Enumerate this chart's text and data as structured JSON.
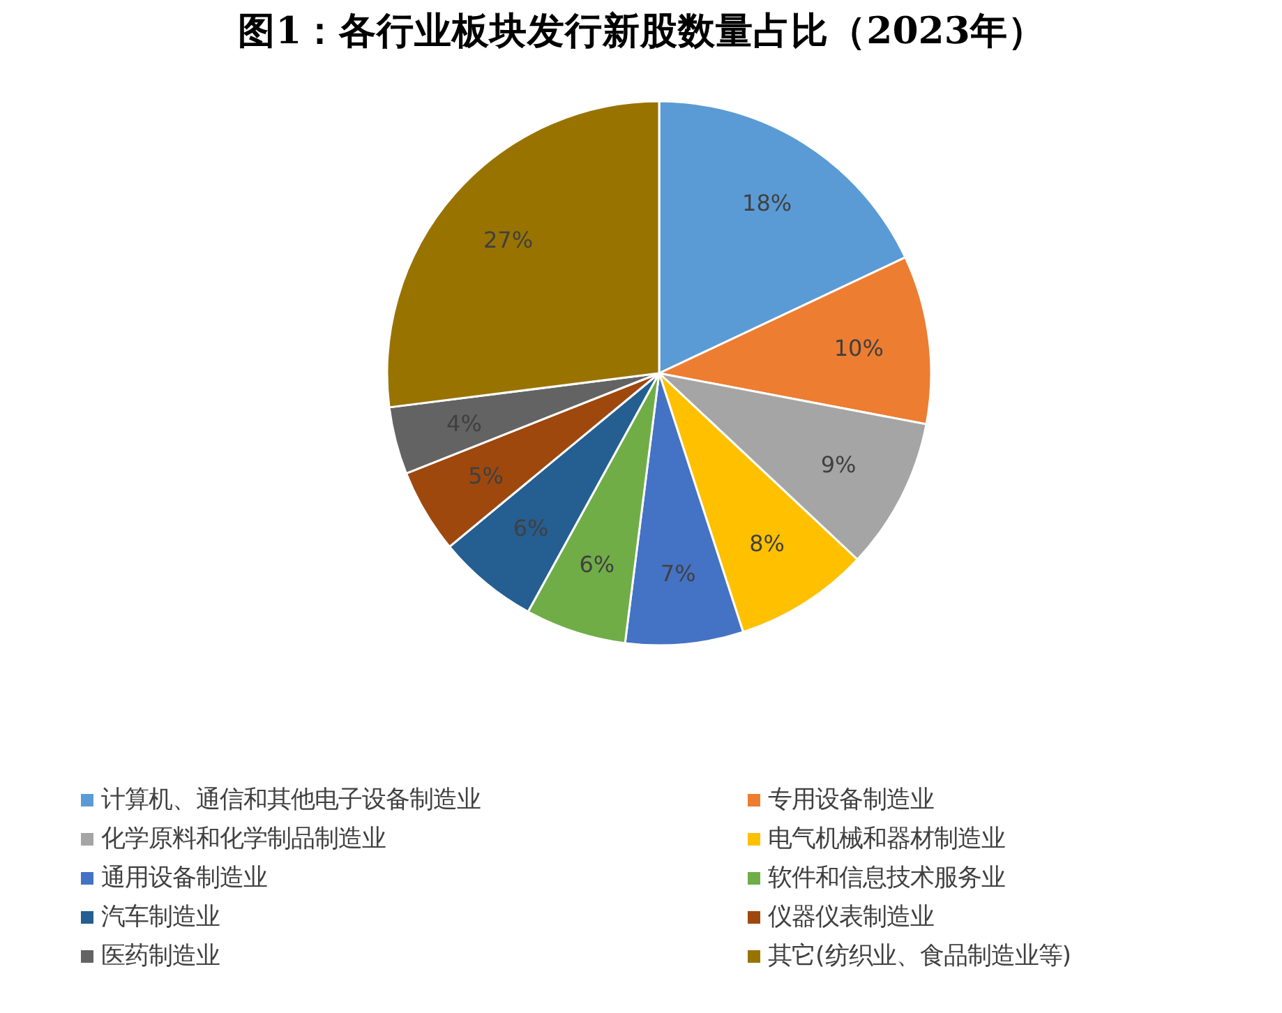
{
  "chart_data": {
    "type": "pie",
    "title": "图1：各行业板块发行新股数量占比（2023年）",
    "categories": [
      "计算机、通信和其他电子设备制造业",
      "专用设备制造业",
      "化学原料和化学制品制造业",
      "电气机械和器材制造业",
      "通用设备制造业",
      "软件和信息技术服务业",
      "汽车制造业",
      "仪器仪表制造业",
      "医药制造业",
      "其它(纺织业、食品制造业等)"
    ],
    "values": [
      18,
      10,
      9,
      8,
      7,
      6,
      6,
      5,
      4,
      27
    ],
    "colors": [
      "#5b9bd5",
      "#ed7d31",
      "#a5a5a5",
      "#ffc000",
      "#4472c4",
      "#70ad47",
      "#255e91",
      "#9e480e",
      "#636363",
      "#997300"
    ],
    "value_labels": [
      "18%",
      "10%",
      "9%",
      "8%",
      "7%",
      "6%",
      "6%",
      "5%",
      "4%",
      "27%"
    ],
    "legend": "bottom"
  }
}
